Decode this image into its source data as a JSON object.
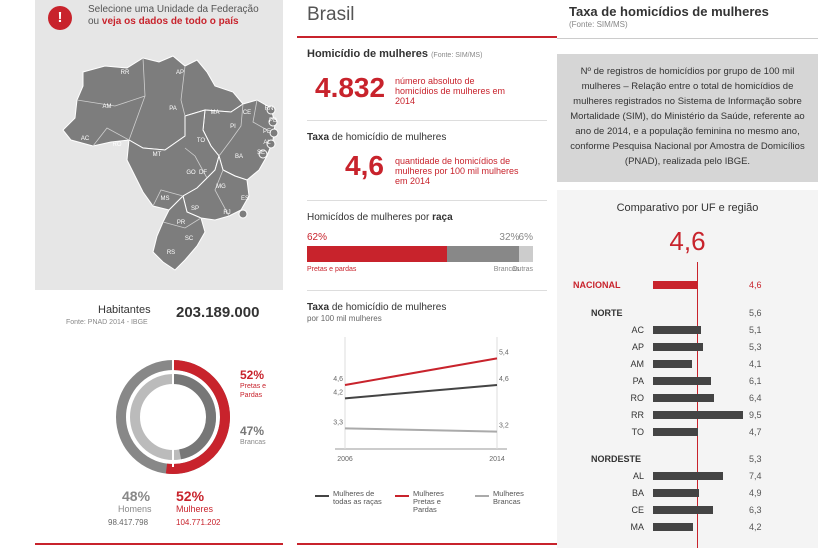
{
  "selector": {
    "line1": "Selecione uma Unidade da Federação",
    "or": "ou",
    "link": "veja os dados de todo o país"
  },
  "map": {
    "states": [
      "RR",
      "AP",
      "AM",
      "PA",
      "MA",
      "CE",
      "RN",
      "PB",
      "PE",
      "AL",
      "SE",
      "PI",
      "AC",
      "RO",
      "TO",
      "MT",
      "BA",
      "GO",
      "DF",
      "MG",
      "ES",
      "MS",
      "SP",
      "RJ",
      "PR",
      "SC",
      "RS"
    ]
  },
  "habitantes": {
    "label": "Habitantes",
    "source": "Fonte: PNAD 2014 - IBGE",
    "value": "203.189.000"
  },
  "donut": {
    "outer_pretas_pct": "52%",
    "outer_pretas_label": "Pretas e Pardas",
    "inner_brancas_pct": "47%",
    "inner_brancas_label": "Brancas",
    "homens_pct": "48%",
    "homens_label": "Homens",
    "homens_value": "98.417.798",
    "mulheres_pct": "52%",
    "mulheres_label": "Mulheres",
    "mulheres_value": "104.771.202",
    "outer_fraction": 0.52,
    "inner_fraction": 0.47
  },
  "brasil": {
    "title": "Brasil",
    "hom_title": "Homicídio de mulheres",
    "hom_source": "(Fonte: SIM/MS)",
    "hom_value": "4.832",
    "hom_desc": "número absoluto de homicídios de mulheres em 2014",
    "taxa_bold": "Taxa",
    "taxa_rest": "de homicídio de mulheres",
    "taxa_value": "4,6",
    "taxa_desc": "quantidade de homicídios de mulheres por 100 mil mulheres em 2014",
    "raca_title": "Homicídos de mulheres por",
    "raca_bold": "raça",
    "raca": [
      {
        "pct": "62%",
        "label": "Pretas e pardas",
        "value": 62,
        "color": "#c8232c"
      },
      {
        "pct": "32%",
        "label": "Brancas",
        "value": 32,
        "color": "#888888"
      },
      {
        "pct": "6%",
        "label": "Outras",
        "value": 6,
        "color": "#cccccc"
      }
    ]
  },
  "linechart": {
    "title_bold": "Taxa",
    "title_rest": "de homicídio de mulheres",
    "subtitle": "por 100 mil mulheres",
    "legend": [
      {
        "label": "Mulheres de todas as raças",
        "color": "#444444"
      },
      {
        "label": "Mulheres Pretas e Pardas",
        "color": "#c8232c"
      },
      {
        "label": "Mulheres Brancas",
        "color": "#aaaaaa"
      }
    ]
  },
  "chart_data": {
    "type": "line",
    "x": [
      "2006",
      "2014"
    ],
    "series": [
      {
        "name": "Mulheres de todas as raças",
        "values": [
          4.2,
          4.6
        ],
        "labels": [
          "4,2",
          "4,6"
        ],
        "color": "#444444"
      },
      {
        "name": "Mulheres Pretas e Pardas",
        "values": [
          4.6,
          5.4
        ],
        "labels": [
          "4,6",
          "5,4"
        ],
        "color": "#c8232c"
      },
      {
        "name": "Mulheres Brancas",
        "values": [
          3.3,
          3.2
        ],
        "labels": [
          "3,3",
          "3,2"
        ],
        "color": "#aaaaaa"
      }
    ],
    "ylim": [
      2.8,
      5.8
    ]
  },
  "right": {
    "title": "Taxa de homicídios de mulheres",
    "source": "(Fonte: SIM/MS)",
    "description": "Nº de registros de homicídios por grupo de 100 mil mulheres – Relação entre o total de homicídios de mulheres registrados no Sistema de Informação sobre Mortalidade (SIM), do Ministério da Saúde, referente ao ano de 2014, e a população feminina no mesmo ano, conforme Pesquisa Nacional por Amostra de Domicílios (PNAD), realizada pelo IBGE.",
    "comparativo": "Comparativo por UF e região",
    "big_value": "4,6",
    "nacional_ref": 4.6,
    "bar_max": 9.5,
    "rows": [
      {
        "label": "NACIONAL",
        "value": 4.6,
        "display": "4,6",
        "kind": "nacional"
      },
      {
        "label": "NORTE",
        "value": 5.6,
        "display": "5,6",
        "kind": "region"
      },
      {
        "label": "AC",
        "value": 5.1,
        "display": "5,1",
        "kind": "uf"
      },
      {
        "label": "AP",
        "value": 5.3,
        "display": "5,3",
        "kind": "uf"
      },
      {
        "label": "AM",
        "value": 4.1,
        "display": "4,1",
        "kind": "uf"
      },
      {
        "label": "PA",
        "value": 6.1,
        "display": "6,1",
        "kind": "uf"
      },
      {
        "label": "RO",
        "value": 6.4,
        "display": "6,4",
        "kind": "uf"
      },
      {
        "label": "RR",
        "value": 9.5,
        "display": "9,5",
        "kind": "uf"
      },
      {
        "label": "TO",
        "value": 4.7,
        "display": "4,7",
        "kind": "uf"
      },
      {
        "label": "NORDESTE",
        "value": 5.3,
        "display": "5,3",
        "kind": "region"
      },
      {
        "label": "AL",
        "value": 7.4,
        "display": "7,4",
        "kind": "uf"
      },
      {
        "label": "BA",
        "value": 4.9,
        "display": "4,9",
        "kind": "uf"
      },
      {
        "label": "CE",
        "value": 6.3,
        "display": "6,3",
        "kind": "uf"
      },
      {
        "label": "MA",
        "value": 4.2,
        "display": "4,2",
        "kind": "uf"
      }
    ]
  }
}
